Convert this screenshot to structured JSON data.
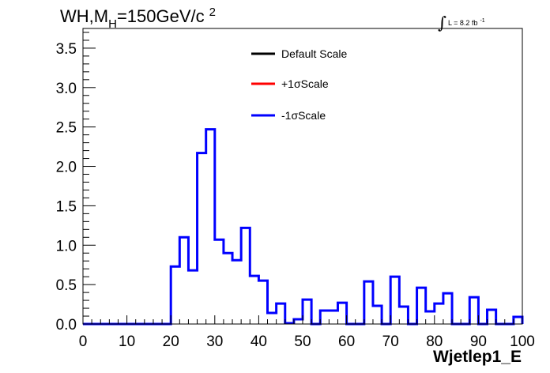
{
  "chart_data": {
    "type": "histogram",
    "title_prefix": "WH,M",
    "title_sub": "H",
    "title_suffix": "=150GeV/c",
    "title_sup": "2",
    "lumi_label": "L = 8.2 fb",
    "lumi_sup": "-1",
    "xlabel": "Wjetlep1_E",
    "ylabel": "",
    "xlim": [
      0,
      100
    ],
    "ylim": [
      0,
      3.75
    ],
    "bin_width": 2,
    "x_ticks": [
      "0",
      "10",
      "20",
      "30",
      "40",
      "50",
      "60",
      "70",
      "80",
      "90",
      "100"
    ],
    "y_ticks": [
      "0.0",
      "0.5",
      "1.0",
      "1.5",
      "2.0",
      "2.5",
      "3.0",
      "3.5"
    ],
    "legend": {
      "position": "top-center",
      "entries": [
        {
          "label": "Default Scale",
          "color": "#000000"
        },
        {
          "label": "+1σScale",
          "color": "#ff0000"
        },
        {
          "label": "-1σScale",
          "color": "#0000ff"
        }
      ]
    },
    "series": [
      {
        "name": "-1σScale",
        "color": "#0000ff",
        "x_edges": [
          0,
          2,
          4,
          6,
          8,
          10,
          12,
          14,
          16,
          18,
          20,
          22,
          24,
          26,
          28,
          30,
          32,
          34,
          36,
          38,
          40,
          42,
          44,
          46,
          48,
          50,
          52,
          54,
          56,
          58,
          60,
          62,
          64,
          66,
          68,
          70,
          72,
          74,
          76,
          78,
          80,
          82,
          84,
          86,
          88,
          90,
          92,
          94,
          96,
          98,
          100
        ],
        "values": [
          0,
          0,
          0,
          0,
          0,
          0,
          0,
          0,
          0,
          0,
          0.73,
          1.1,
          0.68,
          2.17,
          2.47,
          1.07,
          0.9,
          0.81,
          1.22,
          0.61,
          0.55,
          0.14,
          0.26,
          0.01,
          0.06,
          0.31,
          0,
          0.17,
          0.17,
          0.27,
          0,
          0,
          0.54,
          0.23,
          0,
          0.6,
          0.22,
          0,
          0.46,
          0.16,
          0.26,
          0.39,
          0,
          0,
          0.34,
          0,
          0.18,
          0,
          0,
          0.09
        ]
      }
    ]
  }
}
